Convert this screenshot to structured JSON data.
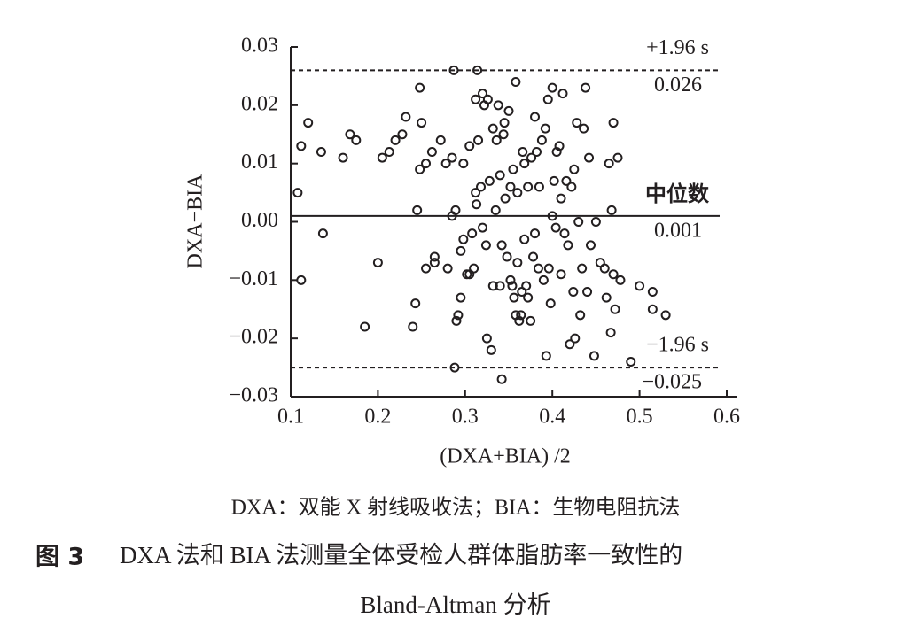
{
  "chart_data": {
    "type": "scatter",
    "x_label": "(DXA+BIA) /2",
    "y_label": "DXA−BIA",
    "xlim": [
      0.1,
      0.6
    ],
    "xticks": [
      0.1,
      0.2,
      0.3,
      0.4,
      0.5,
      0.6
    ],
    "ylim": [
      -0.03,
      0.03
    ],
    "yticks": [
      0.03,
      0.02,
      0.01,
      {
        "value": 0,
        "label": "0.00"
      },
      {
        "value": -0.01,
        "label": "−0.01"
      },
      {
        "value": -0.02,
        "label": "−0.02"
      },
      {
        "value": -0.03,
        "label": "−0.03"
      }
    ],
    "color": "#231f20",
    "reference_lines": [
      {
        "value": 0.026,
        "label": "+1.96 s",
        "value_label": "0.026",
        "style": "dashed"
      },
      {
        "value": 0.001,
        "label": "中位数",
        "value_label": "0.001",
        "style": "solid"
      },
      {
        "value": -0.025,
        "label": "−1.96 s",
        "value_label": "−0.025",
        "style": "dashed"
      }
    ],
    "note": "DXA：双能 X 射线吸收法；BIA：生物电阻抗法",
    "figure_label": "图 3",
    "caption_lines": [
      "DXA 法和 BIA 法测量全体受检人群体脂肪率一致性的",
      "Bland-Altman 分析"
    ],
    "x": [
      0.108,
      0.112,
      0.112,
      0.12,
      0.135,
      0.137,
      0.16,
      0.168,
      0.175,
      0.185,
      0.2,
      0.205,
      0.213,
      0.22,
      0.228,
      0.232,
      0.24,
      0.243,
      0.245,
      0.248,
      0.248,
      0.25,
      0.255,
      0.255,
      0.262,
      0.265,
      0.265,
      0.272,
      0.278,
      0.28,
      0.285,
      0.287,
      0.285,
      0.288,
      0.289,
      0.29,
      0.292,
      0.295,
      0.295,
      0.298,
      0.298,
      0.302,
      0.305,
      0.305,
      0.308,
      0.31,
      0.312,
      0.312,
      0.313,
      0.314,
      0.315,
      0.318,
      0.32,
      0.32,
      0.322,
      0.324,
      0.325,
      0.326,
      0.328,
      0.33,
      0.332,
      0.332,
      0.335,
      0.336,
      0.338,
      0.34,
      0.34,
      0.342,
      0.342,
      0.344,
      0.345,
      0.346,
      0.348,
      0.35,
      0.352,
      0.352,
      0.354,
      0.355,
      0.356,
      0.358,
      0.358,
      0.36,
      0.36,
      0.362,
      0.364,
      0.365,
      0.366,
      0.368,
      0.368,
      0.37,
      0.372,
      0.372,
      0.375,
      0.376,
      0.378,
      0.38,
      0.38,
      0.382,
      0.384,
      0.385,
      0.388,
      0.39,
      0.392,
      0.393,
      0.395,
      0.396,
      0.398,
      0.4,
      0.4,
      0.402,
      0.404,
      0.405,
      0.408,
      0.41,
      0.41,
      0.412,
      0.414,
      0.416,
      0.418,
      0.42,
      0.422,
      0.424,
      0.425,
      0.426,
      0.428,
      0.43,
      0.432,
      0.434,
      0.436,
      0.438,
      0.44,
      0.442,
      0.444,
      0.448,
      0.45,
      0.455,
      0.46,
      0.462,
      0.465,
      0.467,
      0.468,
      0.47,
      0.47,
      0.472,
      0.475,
      0.478,
      0.49,
      0.5,
      0.515,
      0.515,
      0.53
    ],
    "y": [
      0.005,
      -0.01,
      0.013,
      0.017,
      0.012,
      -0.002,
      0.011,
      0.015,
      0.014,
      -0.018,
      -0.007,
      0.011,
      0.012,
      0.014,
      0.015,
      0.018,
      -0.018,
      -0.014,
      0.002,
      0.009,
      0.023,
      0.017,
      0.01,
      -0.008,
      0.012,
      -0.007,
      -0.006,
      0.014,
      0.01,
      -0.008,
      0.011,
      0.026,
      0.001,
      -0.025,
      0.002,
      -0.017,
      -0.016,
      -0.013,
      -0.005,
      0.01,
      -0.003,
      -0.009,
      0.013,
      -0.009,
      -0.002,
      -0.008,
      0.021,
      0.005,
      0.003,
      0.026,
      0.014,
      0.006,
      -0.001,
      0.022,
      0.02,
      -0.004,
      -0.02,
      0.021,
      0.007,
      -0.022,
      -0.011,
      0.016,
      0.002,
      0.014,
      0.02,
      -0.011,
      0.008,
      -0.027,
      -0.004,
      0.015,
      0.017,
      0.004,
      -0.006,
      0.019,
      -0.01,
      0.006,
      -0.011,
      0.009,
      -0.013,
      0.024,
      -0.016,
      0.005,
      -0.007,
      -0.017,
      -0.016,
      -0.012,
      0.012,
      0.01,
      -0.003,
      -0.011,
      0.006,
      -0.013,
      -0.017,
      0.011,
      -0.006,
      0.018,
      -0.002,
      0.012,
      -0.008,
      0.006,
      0.014,
      -0.01,
      0.016,
      -0.023,
      0.021,
      -0.008,
      -0.014,
      0.023,
      0.001,
      0.007,
      -0.001,
      0.012,
      0.013,
      -0.009,
      0.004,
      0.022,
      -0.002,
      0.007,
      -0.004,
      -0.021,
      0.006,
      -0.012,
      0.009,
      -0.02,
      0.017,
      0,
      -0.016,
      -0.008,
      0.016,
      0.023,
      -0.012,
      0.011,
      -0.004,
      -0.023,
      0,
      -0.007,
      -0.008,
      -0.013,
      0.01,
      -0.019,
      0.002,
      0.017,
      -0.009,
      -0.015,
      0.011,
      -0.01,
      -0.024,
      -0.011,
      -0.012,
      -0.015,
      -0.016
    ]
  }
}
